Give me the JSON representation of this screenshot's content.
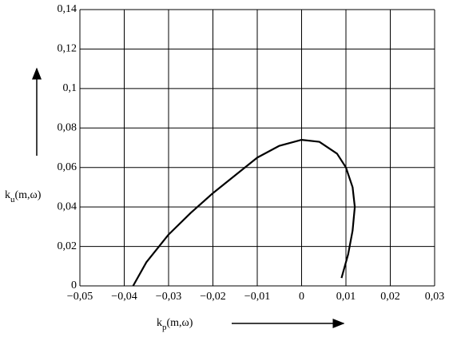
{
  "chart_data": {
    "type": "line",
    "x": [
      -0.038,
      -0.035,
      -0.03,
      -0.025,
      -0.02,
      -0.015,
      -0.01,
      -0.005,
      0,
      0.004,
      0.008,
      0.01,
      0.0115,
      0.012,
      0.0115,
      0.0105,
      0.009
    ],
    "values": [
      0,
      0.012,
      0.026,
      0.037,
      0.047,
      0.056,
      0.065,
      0.071,
      0.074,
      0.073,
      0.067,
      0.06,
      0.05,
      0.04,
      0.028,
      0.016,
      0.004
    ],
    "color": "#000000",
    "xlabel": {
      "base": "k",
      "sub": "p",
      "rest": "(m,ω)"
    },
    "ylabel": {
      "base": "k",
      "sub": "u",
      "rest": "(m,ω)"
    },
    "xlim": [
      -0.05,
      0.03
    ],
    "ylim": [
      0,
      0.14
    ],
    "xticks": [
      {
        "value": -0.05,
        "label": "−0,05"
      },
      {
        "value": -0.04,
        "label": "−0,04"
      },
      {
        "value": -0.03,
        "label": "−0,03"
      },
      {
        "value": -0.02,
        "label": "−0,02"
      },
      {
        "value": -0.01,
        "label": "−0,01"
      },
      0,
      {
        "value": 0.01,
        "label": "0,01"
      },
      {
        "value": 0.02,
        "label": "0,02"
      },
      {
        "value": 0.03,
        "label": "0,03"
      }
    ],
    "yticks": [
      0,
      {
        "value": 0.02,
        "label": "0,02"
      },
      {
        "value": 0.04,
        "label": "0,04"
      },
      {
        "value": 0.06,
        "label": "0,06"
      },
      {
        "value": 0.08,
        "label": "0,08"
      },
      {
        "value": 0.1,
        "label": "0,1"
      },
      {
        "value": 0.12,
        "label": "0,12"
      },
      {
        "value": 0.14,
        "label": "0,14"
      }
    ],
    "grid": true
  }
}
